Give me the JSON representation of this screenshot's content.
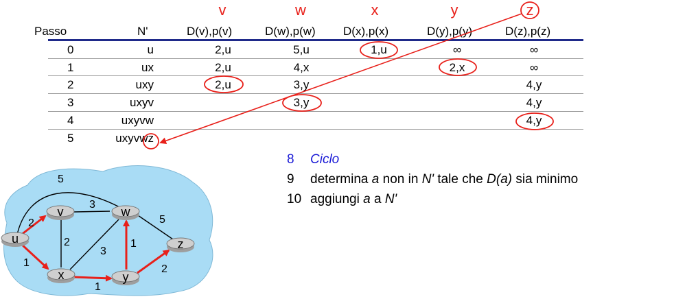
{
  "table": {
    "node_letters": [
      "v",
      "w",
      "x",
      "y",
      "z"
    ],
    "headers": [
      "Passo",
      "N'",
      "D(v),p(v)",
      "D(w),p(w)",
      "D(x),p(x)",
      "D(y),p(y)",
      "D(z),p(z)"
    ],
    "rows": [
      {
        "step": "0",
        "nset": "u",
        "v": "2,u",
        "w": "5,u",
        "x": "1,u",
        "y": "∞",
        "z": "∞"
      },
      {
        "step": "1",
        "nset": "ux",
        "v": "2,u",
        "w": "4,x",
        "x": "",
        "y": "2,x",
        "z": "∞"
      },
      {
        "step": "2",
        "nset": "uxy",
        "v": "2,u",
        "w": "3,y",
        "x": "",
        "y": "",
        "z": "4,y"
      },
      {
        "step": "3",
        "nset": "uxyv",
        "v": "",
        "w": "3,y",
        "x": "",
        "y": "",
        "z": "4,y"
      },
      {
        "step": "4",
        "nset": "uxyvw",
        "v": "",
        "w": "",
        "x": "",
        "y": "",
        "z": "4,y"
      },
      {
        "step": "5",
        "nset": "uxyvwz",
        "v": "",
        "w": "",
        "x": "",
        "y": "",
        "z": ""
      }
    ]
  },
  "algorithm": [
    {
      "num": "8",
      "text": "Ciclo"
    },
    {
      "num": "9",
      "pre": "determina ",
      "a1": "a",
      "mid1": " non in ",
      "a2": "N'",
      "mid2": " tale che ",
      "a3": "D(a)",
      "post": " sia minimo"
    },
    {
      "num": "10",
      "pre": "aggiungi ",
      "a1": "a",
      "mid1": " a ",
      "a2": "N'"
    }
  ],
  "graph": {
    "nodes": [
      "u",
      "v",
      "w",
      "x",
      "y",
      "z"
    ],
    "edge_weights": {
      "u-v": "2",
      "u-w": "5",
      "v-w": "3",
      "u-x": "1",
      "v-x": "2",
      "x-w": "3",
      "x-y": "1",
      "y-w": "1",
      "w-z": "5",
      "y-z": "2"
    }
  },
  "colors": {
    "accent_red": "#e8201a",
    "header_rule": "#1f2a8a",
    "algo_blue": "#1a1ad6",
    "cloud": "#a9dcf5",
    "router": "#c8c8c8"
  }
}
